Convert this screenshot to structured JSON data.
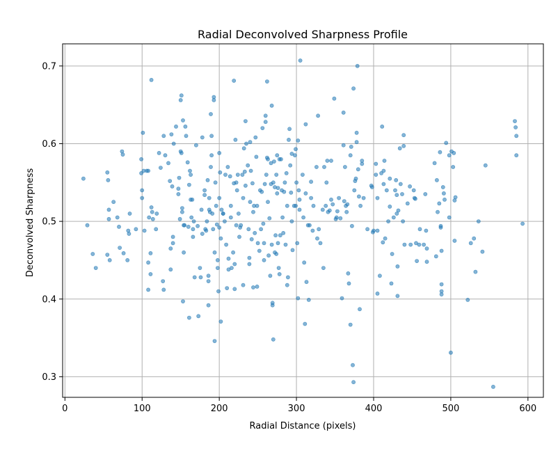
{
  "chart_data": {
    "type": "scatter",
    "title": "Radial Deconvolved Sharpness Profile",
    "xlabel": "Radial Distance (pixels)",
    "ylabel": "Deconvolved Sharpness",
    "xlim": [
      -3,
      620
    ],
    "ylim": [
      0.2735,
      0.7285
    ],
    "xticks": [
      0,
      100,
      200,
      300,
      400,
      500,
      600
    ],
    "yticks": [
      0.3,
      0.4,
      0.5,
      0.6,
      0.7
    ],
    "grid": true,
    "marker_color": "#1f77b4",
    "points": [
      [
        24,
        0.555
      ],
      [
        29,
        0.495
      ],
      [
        36,
        0.458
      ],
      [
        40,
        0.44
      ],
      [
        55,
        0.563
      ],
      [
        56,
        0.553
      ],
      [
        57,
        0.515
      ],
      [
        57,
        0.503
      ],
      [
        58,
        0.45
      ],
      [
        55,
        0.457
      ],
      [
        63,
        0.525
      ],
      [
        68,
        0.505
      ],
      [
        70,
        0.493
      ],
      [
        71,
        0.466
      ],
      [
        74,
        0.59
      ],
      [
        75,
        0.586
      ],
      [
        76,
        0.459
      ],
      [
        81,
        0.45
      ],
      [
        82,
        0.488
      ],
      [
        83,
        0.484
      ],
      [
        84,
        0.51
      ],
      [
        92,
        0.49
      ],
      [
        99,
        0.562
      ],
      [
        99,
        0.58
      ],
      [
        100,
        0.54
      ],
      [
        100,
        0.53
      ],
      [
        101,
        0.614
      ],
      [
        102,
        0.565
      ],
      [
        103,
        0.488
      ],
      [
        106,
        0.565
      ],
      [
        108,
        0.565
      ],
      [
        108,
        0.447
      ],
      [
        108,
        0.412
      ],
      [
        109,
        0.505
      ],
      [
        111,
        0.432
      ],
      [
        111,
        0.459
      ],
      [
        112,
        0.518
      ],
      [
        112,
        0.682
      ],
      [
        113,
        0.512
      ],
      [
        114,
        0.503
      ],
      [
        118,
        0.49
      ],
      [
        119,
        0.51
      ],
      [
        122,
        0.588
      ],
      [
        124,
        0.569
      ],
      [
        127,
        0.423
      ],
      [
        128,
        0.412
      ],
      [
        128,
        0.61
      ],
      [
        130,
        0.585
      ],
      [
        134,
        0.575
      ],
      [
        136,
        0.552
      ],
      [
        137,
        0.465
      ],
      [
        137,
        0.438
      ],
      [
        138,
        0.612
      ],
      [
        139,
        0.545
      ],
      [
        140,
        0.48
      ],
      [
        140,
        0.472
      ],
      [
        141,
        0.6
      ],
      [
        144,
        0.622
      ],
      [
        147,
        0.542
      ],
      [
        147,
        0.535
      ],
      [
        148,
        0.556
      ],
      [
        149,
        0.503
      ],
      [
        150,
        0.656
      ],
      [
        150,
        0.59
      ],
      [
        151,
        0.662
      ],
      [
        151,
        0.588
      ],
      [
        152,
        0.517
      ],
      [
        152,
        0.512
      ],
      [
        153,
        0.63
      ],
      [
        153,
        0.397
      ],
      [
        154,
        0.46
      ],
      [
        154,
        0.495
      ],
      [
        155,
        0.495
      ],
      [
        156,
        0.622
      ],
      [
        157,
        0.61
      ],
      [
        159,
        0.576
      ],
      [
        160,
        0.493
      ],
      [
        161,
        0.547
      ],
      [
        161,
        0.376
      ],
      [
        162,
        0.565
      ],
      [
        163,
        0.56
      ],
      [
        163,
        0.528
      ],
      [
        164,
        0.505
      ],
      [
        165,
        0.528
      ],
      [
        166,
        0.49
      ],
      [
        166,
        0.48
      ],
      [
        167,
        0.5
      ],
      [
        168,
        0.428
      ],
      [
        170,
        0.598
      ],
      [
        172,
        0.494
      ],
      [
        173,
        0.378
      ],
      [
        175,
        0.44
      ],
      [
        176,
        0.428
      ],
      [
        177,
        0.515
      ],
      [
        178,
        0.484
      ],
      [
        178,
        0.608
      ],
      [
        181,
        0.54
      ],
      [
        181,
        0.534
      ],
      [
        182,
        0.49
      ],
      [
        183,
        0.488
      ],
      [
        184,
        0.5
      ],
      [
        185,
        0.553
      ],
      [
        186,
        0.43
      ],
      [
        186,
        0.423
      ],
      [
        186,
        0.392
      ],
      [
        187,
        0.515
      ],
      [
        187,
        0.53
      ],
      [
        188,
        0.512
      ],
      [
        189,
        0.57
      ],
      [
        189,
        0.638
      ],
      [
        190,
        0.61
      ],
      [
        190,
        0.585
      ],
      [
        191,
        0.51
      ],
      [
        192,
        0.49
      ],
      [
        193,
        0.66
      ],
      [
        193,
        0.656
      ],
      [
        194,
        0.346
      ],
      [
        194,
        0.46
      ],
      [
        195,
        0.55
      ],
      [
        196,
        0.52
      ],
      [
        197,
        0.496
      ],
      [
        198,
        0.44
      ],
      [
        198,
        0.45
      ],
      [
        199,
        0.41
      ],
      [
        200,
        0.588
      ],
      [
        200,
        0.492
      ],
      [
        200,
        0.53
      ],
      [
        201,
        0.563
      ],
      [
        202,
        0.371
      ],
      [
        202,
        0.478
      ],
      [
        203,
        0.515
      ],
      [
        205,
        0.51
      ],
      [
        205,
        0.51
      ],
      [
        207,
        0.5
      ],
      [
        208,
        0.56
      ],
      [
        209,
        0.47
      ],
      [
        210,
        0.414
      ],
      [
        211,
        0.57
      ],
      [
        212,
        0.438
      ],
      [
        212,
        0.452
      ],
      [
        214,
        0.558
      ],
      [
        215,
        0.52
      ],
      [
        215,
        0.505
      ],
      [
        216,
        0.44
      ],
      [
        218,
        0.46
      ],
      [
        219,
        0.549
      ],
      [
        219,
        0.681
      ],
      [
        220,
        0.413
      ],
      [
        220,
        0.445
      ],
      [
        221,
        0.605
      ],
      [
        222,
        0.55
      ],
      [
        222,
        0.495
      ],
      [
        223,
        0.54
      ],
      [
        224,
        0.56
      ],
      [
        225,
        0.51
      ],
      [
        226,
        0.48
      ],
      [
        227,
        0.492
      ],
      [
        228,
        0.495
      ],
      [
        230,
        0.56
      ],
      [
        231,
        0.418
      ],
      [
        231,
        0.53
      ],
      [
        232,
        0.594
      ],
      [
        233,
        0.564
      ],
      [
        234,
        0.546
      ],
      [
        234,
        0.629
      ],
      [
        235,
        0.6
      ],
      [
        237,
        0.572
      ],
      [
        238,
        0.49
      ],
      [
        239,
        0.445
      ],
      [
        239,
        0.453
      ],
      [
        240,
        0.525
      ],
      [
        240,
        0.602
      ],
      [
        241,
        0.565
      ],
      [
        242,
        0.477
      ],
      [
        243,
        0.549
      ],
      [
        244,
        0.512
      ],
      [
        244,
        0.415
      ],
      [
        245,
        0.52
      ],
      [
        246,
        0.485
      ],
      [
        247,
        0.608
      ],
      [
        248,
        0.583
      ],
      [
        249,
        0.52
      ],
      [
        249,
        0.416
      ],
      [
        250,
        0.472
      ],
      [
        252,
        0.462
      ],
      [
        253,
        0.54
      ],
      [
        254,
        0.49
      ],
      [
        255,
        0.538
      ],
      [
        256,
        0.62
      ],
      [
        257,
        0.497
      ],
      [
        258,
        0.472
      ],
      [
        258,
        0.45
      ],
      [
        259,
        0.548
      ],
      [
        260,
        0.628
      ],
      [
        260,
        0.636
      ],
      [
        261,
        0.56
      ],
      [
        262,
        0.68
      ],
      [
        262,
        0.582
      ],
      [
        263,
        0.58
      ],
      [
        263,
        0.525
      ],
      [
        264,
        0.456
      ],
      [
        265,
        0.504
      ],
      [
        266,
        0.43
      ],
      [
        267,
        0.575
      ],
      [
        267,
        0.548
      ],
      [
        268,
        0.47
      ],
      [
        268,
        0.649
      ],
      [
        269,
        0.395
      ],
      [
        269,
        0.392
      ],
      [
        270,
        0.55
      ],
      [
        270,
        0.348
      ],
      [
        271,
        0.577
      ],
      [
        272,
        0.544
      ],
      [
        272,
        0.46
      ],
      [
        273,
        0.482
      ],
      [
        274,
        0.56
      ],
      [
        274,
        0.458
      ],
      [
        275,
        0.585
      ],
      [
        275,
        0.536
      ],
      [
        276,
        0.543
      ],
      [
        276,
        0.472
      ],
      [
        277,
        0.44
      ],
      [
        278,
        0.58
      ],
      [
        278,
        0.432
      ],
      [
        279,
        0.482
      ],
      [
        280,
        0.58
      ],
      [
        281,
        0.54
      ],
      [
        282,
        0.505
      ],
      [
        283,
        0.485
      ],
      [
        284,
        0.538
      ],
      [
        285,
        0.55
      ],
      [
        286,
        0.47
      ],
      [
        287,
        0.562
      ],
      [
        288,
        0.52
      ],
      [
        288,
        0.418
      ],
      [
        289,
        0.428
      ],
      [
        290,
        0.605
      ],
      [
        291,
        0.619
      ],
      [
        292,
        0.572
      ],
      [
        293,
        0.537
      ],
      [
        294,
        0.5
      ],
      [
        294,
        0.587
      ],
      [
        295,
        0.463
      ],
      [
        297,
        0.52
      ],
      [
        298,
        0.585
      ],
      [
        299,
        0.593
      ],
      [
        299,
        0.52
      ],
      [
        300,
        0.55
      ],
      [
        301,
        0.472
      ],
      [
        302,
        0.604
      ],
      [
        302,
        0.401
      ],
      [
        303,
        0.54
      ],
      [
        304,
        0.515
      ],
      [
        304,
        0.528
      ],
      [
        305,
        0.707
      ],
      [
        308,
        0.56
      ],
      [
        309,
        0.505
      ],
      [
        310,
        0.447
      ],
      [
        311,
        0.368
      ],
      [
        312,
        0.625
      ],
      [
        312,
        0.536
      ],
      [
        313,
        0.422
      ],
      [
        315,
        0.495
      ],
      [
        316,
        0.399
      ],
      [
        317,
        0.495
      ],
      [
        319,
        0.53
      ],
      [
        319,
        0.551
      ],
      [
        321,
        0.488
      ],
      [
        322,
        0.52
      ],
      [
        326,
        0.57
      ],
      [
        327,
        0.478
      ],
      [
        328,
        0.636
      ],
      [
        329,
        0.49
      ],
      [
        331,
        0.472
      ],
      [
        334,
        0.515
      ],
      [
        335,
        0.44
      ],
      [
        336,
        0.57
      ],
      [
        338,
        0.52
      ],
      [
        339,
        0.55
      ],
      [
        340,
        0.578
      ],
      [
        341,
        0.512
      ],
      [
        343,
        0.514
      ],
      [
        345,
        0.578
      ],
      [
        345,
        0.528
      ],
      [
        347,
        0.522
      ],
      [
        349,
        0.658
      ],
      [
        351,
        0.503
      ],
      [
        352,
        0.505
      ],
      [
        353,
        0.513
      ],
      [
        355,
        0.53
      ],
      [
        357,
        0.504
      ],
      [
        359,
        0.401
      ],
      [
        361,
        0.598
      ],
      [
        361,
        0.64
      ],
      [
        362,
        0.526
      ],
      [
        363,
        0.57
      ],
      [
        364,
        0.52
      ],
      [
        365,
        0.512
      ],
      [
        366,
        0.522
      ],
      [
        367,
        0.433
      ],
      [
        368,
        0.42
      ],
      [
        370,
        0.585
      ],
      [
        370,
        0.367
      ],
      [
        371,
        0.596
      ],
      [
        372,
        0.494
      ],
      [
        373,
        0.315
      ],
      [
        374,
        0.671
      ],
      [
        374,
        0.293
      ],
      [
        375,
        0.54
      ],
      [
        376,
        0.552
      ],
      [
        377,
        0.555
      ],
      [
        378,
        0.614
      ],
      [
        378,
        0.602
      ],
      [
        379,
        0.7
      ],
      [
        380,
        0.567
      ],
      [
        381,
        0.532
      ],
      [
        382,
        0.387
      ],
      [
        383,
        0.52
      ],
      [
        385,
        0.578
      ],
      [
        385,
        0.574
      ],
      [
        387,
        0.53
      ],
      [
        392,
        0.49
      ],
      [
        397,
        0.546
      ],
      [
        398,
        0.544
      ],
      [
        399,
        0.486
      ],
      [
        400,
        0.488
      ],
      [
        403,
        0.56
      ],
      [
        403,
        0.574
      ],
      [
        405,
        0.53
      ],
      [
        405,
        0.488
      ],
      [
        405,
        0.407
      ],
      [
        408,
        0.43
      ],
      [
        410,
        0.562
      ],
      [
        411,
        0.622
      ],
      [
        412,
        0.473
      ],
      [
        413,
        0.565
      ],
      [
        413,
        0.548
      ],
      [
        414,
        0.578
      ],
      [
        415,
        0.478
      ],
      [
        417,
        0.54
      ],
      [
        419,
        0.5
      ],
      [
        421,
        0.555
      ],
      [
        421,
        0.519
      ],
      [
        423,
        0.42
      ],
      [
        424,
        0.458
      ],
      [
        426,
        0.505
      ],
      [
        428,
        0.54
      ],
      [
        429,
        0.553
      ],
      [
        430,
        0.534
      ],
      [
        430,
        0.51
      ],
      [
        431,
        0.442
      ],
      [
        431,
        0.404
      ],
      [
        432,
        0.514
      ],
      [
        434,
        0.594
      ],
      [
        435,
        0.548
      ],
      [
        437,
        0.535
      ],
      [
        438,
        0.5
      ],
      [
        439,
        0.597
      ],
      [
        439,
        0.611
      ],
      [
        440,
        0.47
      ],
      [
        444,
        0.523
      ],
      [
        447,
        0.545
      ],
      [
        448,
        0.47
      ],
      [
        452,
        0.54
      ],
      [
        453,
        0.53
      ],
      [
        454,
        0.529
      ],
      [
        455,
        0.472
      ],
      [
        456,
        0.449
      ],
      [
        459,
        0.47
      ],
      [
        460,
        0.49
      ],
      [
        465,
        0.47
      ],
      [
        467,
        0.535
      ],
      [
        468,
        0.488
      ],
      [
        469,
        0.465
      ],
      [
        469,
        0.448
      ],
      [
        479,
        0.575
      ],
      [
        481,
        0.455
      ],
      [
        482,
        0.553
      ],
      [
        483,
        0.512
      ],
      [
        485,
        0.523
      ],
      [
        486,
        0.589
      ],
      [
        487,
        0.494
      ],
      [
        487,
        0.492
      ],
      [
        488,
        0.419
      ],
      [
        488,
        0.41
      ],
      [
        488,
        0.406
      ],
      [
        488,
        0.462
      ],
      [
        490,
        0.544
      ],
      [
        491,
        0.536
      ],
      [
        492,
        0.528
      ],
      [
        494,
        0.601
      ],
      [
        498,
        0.505
      ],
      [
        498,
        0.585
      ],
      [
        500,
        0.331
      ],
      [
        501,
        0.59
      ],
      [
        503,
        0.57
      ],
      [
        504,
        0.588
      ],
      [
        505,
        0.475
      ],
      [
        505,
        0.527
      ],
      [
        506,
        0.531
      ],
      [
        522,
        0.399
      ],
      [
        526,
        0.472
      ],
      [
        530,
        0.478
      ],
      [
        532,
        0.435
      ],
      [
        536,
        0.5
      ],
      [
        541,
        0.461
      ],
      [
        545,
        0.572
      ],
      [
        555,
        0.287
      ],
      [
        583,
        0.629
      ],
      [
        584,
        0.621
      ],
      [
        585,
        0.61
      ],
      [
        585,
        0.585
      ],
      [
        593,
        0.497
      ]
    ]
  }
}
